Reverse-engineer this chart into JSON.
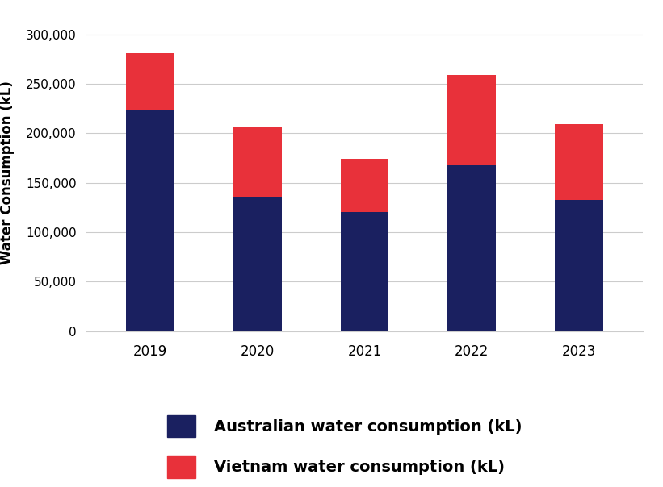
{
  "years": [
    "2019",
    "2020",
    "2021",
    "2022",
    "2023"
  ],
  "australia": [
    224000,
    136000,
    120000,
    168000,
    133000
  ],
  "vietnam": [
    57000,
    71000,
    54000,
    91000,
    76000
  ],
  "australia_color": "#1a2060",
  "vietnam_color": "#e8313a",
  "ylabel": "Water Consumption (kL)",
  "ylim": [
    0,
    320000
  ],
  "yticks": [
    0,
    50000,
    100000,
    150000,
    200000,
    250000,
    300000
  ],
  "legend_australia": "Australian water consumption (kL)",
  "legend_vietnam": "Vietnam water consumption (kL)",
  "background_color": "#ffffff",
  "bar_width": 0.45,
  "grid_color": "#cccccc"
}
